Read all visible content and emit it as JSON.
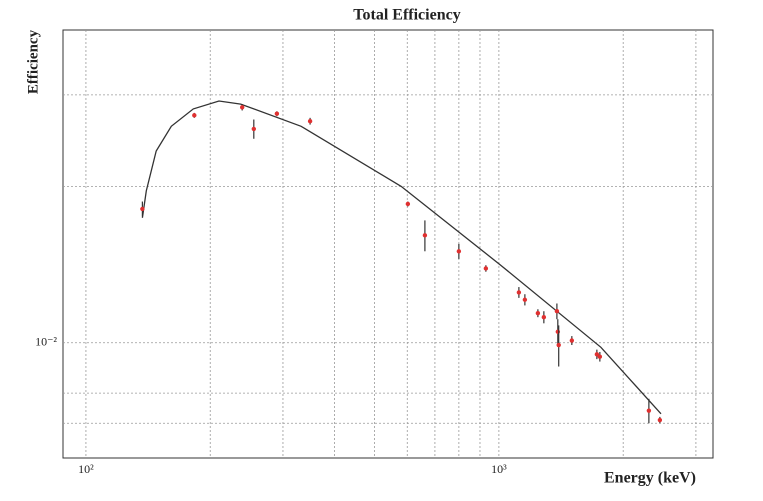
{
  "chart_data": {
    "type": "scatter",
    "title": "Total Efficiency",
    "x_label": "Energy (keV)",
    "y_label": "Efficiency",
    "log_x": true,
    "log_y": true,
    "grid": true,
    "xlim": [
      88,
      3300
    ],
    "ylim": [
      0.006,
      0.04
    ],
    "xticks": [
      {
        "value": 100,
        "label": "10²"
      },
      {
        "value": 1000,
        "label": "10³"
      }
    ],
    "yticks": [
      {
        "value": 0.01,
        "label": "10⁻²"
      }
    ],
    "xgrid": [
      200,
      300,
      400,
      500,
      600,
      700,
      800,
      900,
      2000,
      3000
    ],
    "ygrid": [
      0.007,
      0.008,
      0.02,
      0.03
    ],
    "points": {
      "color": "#e03030",
      "bar_color": "#333333",
      "x": [
        137,
        183,
        239,
        255,
        290,
        349,
        602,
        662,
        800,
        930,
        1118,
        1156,
        1243,
        1285,
        1382,
        1389,
        1396,
        1502,
        1727,
        1756,
        2308,
        2454
      ],
      "values": [
        0.0181,
        0.0274,
        0.0284,
        0.0258,
        0.0276,
        0.0267,
        0.0185,
        0.0161,
        0.015,
        0.0139,
        0.0125,
        0.0121,
        0.0114,
        0.0112,
        0.0115,
        0.0105,
        0.0099,
        0.0101,
        0.0095,
        0.0094,
        0.0074,
        0.0071
      ],
      "errors": [
        0.0006,
        0.0003,
        0.0004,
        0.0011,
        0.0003,
        0.0004,
        0.0002,
        0.0011,
        0.0005,
        0.0002,
        0.0003,
        0.0003,
        0.0002,
        0.0003,
        0.0004,
        0.0006,
        0.0009,
        0.0002,
        0.0002,
        0.0002,
        0.0004,
        0.0001
      ]
    },
    "fit": {
      "color": "#333333",
      "x": [
        137,
        140,
        148,
        161,
        182,
        210,
        237,
        332,
        580,
        1010,
        1766,
        2469
      ],
      "values": [
        0.0174,
        0.0196,
        0.0234,
        0.0261,
        0.0282,
        0.0292,
        0.0288,
        0.0261,
        0.02,
        0.0141,
        0.0098,
        0.0073
      ]
    }
  }
}
